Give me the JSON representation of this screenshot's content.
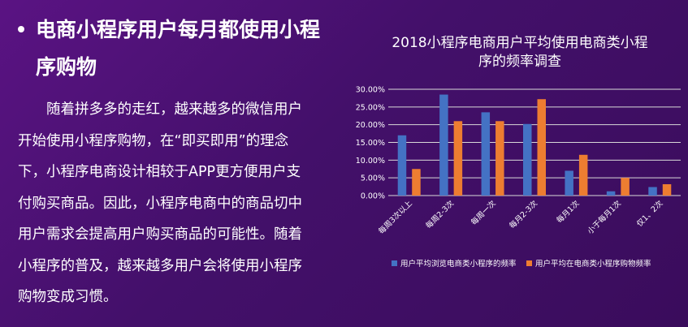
{
  "slide": {
    "title_line1": "电商小程序用户每月都使用小程",
    "title_line2": "序购物",
    "body_lines": [
      "　　随着拼多多的走红，越来越多的微信用户",
      "开始使用小程序购物，在“即买即用”的理念",
      "下，小程序电商设计相较于APP更方便用户支",
      "付购买商品。因此，小程序电商中的商品切中",
      "用户需求会提高用户购买商品的可能性。随着",
      "小程序的普及，越来越多用户会将使用小程序",
      "购物变成习惯。"
    ]
  },
  "colors": {
    "background": "#4a0f6e",
    "series1": "#4472c4",
    "series2": "#ed7d31",
    "text": "#ffffff",
    "grid": "#d9d9d9"
  },
  "chart_data": {
    "type": "bar",
    "title_line1": "2018小程序电商用户平均使用电商类小程",
    "title_line2": "序的频率调查",
    "categories": [
      "每周3次以上",
      "每周2-3次",
      "每周一次",
      "每月2-3次",
      "每月1次",
      "小于每月1次",
      "仅1、2次"
    ],
    "series": [
      {
        "name": "用户平均浏览电商类小程序的频率",
        "values": [
          17.0,
          28.5,
          23.5,
          20.2,
          7.0,
          1.2,
          2.4
        ]
      },
      {
        "name": "用户平均在电商类小程序购物频率",
        "values": [
          7.5,
          21.0,
          21.0,
          27.2,
          11.5,
          5.0,
          3.2
        ]
      }
    ],
    "yticks": [
      "0.00%",
      "5.00%",
      "10.00%",
      "15.00%",
      "20.00%",
      "25.00%",
      "30.00%"
    ],
    "ylim": [
      0,
      30
    ],
    "grid": true,
    "legend_position": "bottom"
  }
}
